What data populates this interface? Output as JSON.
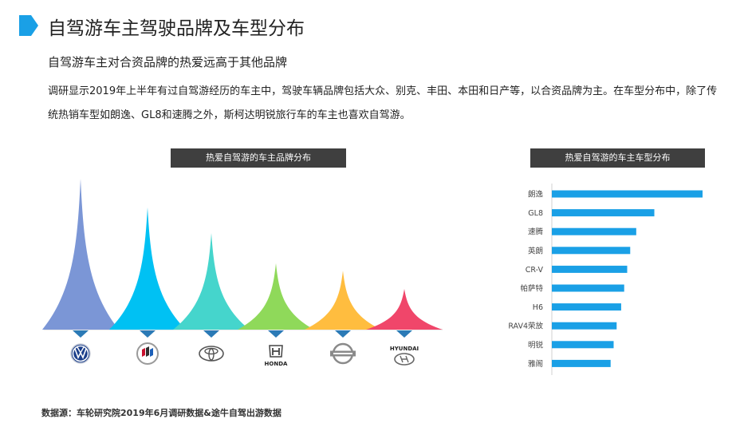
{
  "page": {
    "title": "自驾游车主驾驶品牌及车型分布",
    "subtitle": "自驾游车主对合资品牌的热爱远高于其他品牌",
    "description": "调研显示2019年上半年有过自驾游经历的车主中，驾驶车辆品牌包括大众、别克、丰田、本田和日产等，以合资品牌为主。在车型分布中，除了传统热销车型如朗逸、GL8和速腾之外，斯柯达明锐旅行车的车主也喜欢自驾游。",
    "source": "数据源：车轮研究院2019年6月调研数据&途牛自驾出游数据",
    "accent_color": "#1aa0e6"
  },
  "chart_data": [
    {
      "type": "area",
      "title": "热爱自驾游的车主品牌分布",
      "categories": [
        "Volkswagen",
        "Buick",
        "Toyota",
        "Honda",
        "Nissan",
        "Hyundai"
      ],
      "values": [
        100,
        81,
        64,
        44,
        39,
        27
      ],
      "colors": [
        "#7b96d6",
        "#00c1f3",
        "#45d5cc",
        "#8fd95a",
        "#ffbd3f",
        "#f0466a"
      ],
      "logo_labels": [
        "",
        "",
        "",
        "HONDA",
        "",
        "HYUNDAI"
      ]
    },
    {
      "type": "bar",
      "orientation": "horizontal",
      "title": "热爱自驾游的车主车型分布",
      "categories": [
        "朗逸",
        "GL8",
        "速腾",
        "英朗",
        "CR-V",
        "帕萨特",
        "H6",
        "RAV4荣放",
        "明锐",
        "雅阁"
      ],
      "values": [
        100,
        68,
        56,
        52,
        50,
        48,
        46,
        43,
        41,
        39
      ],
      "color": "#1aa0e6"
    }
  ]
}
